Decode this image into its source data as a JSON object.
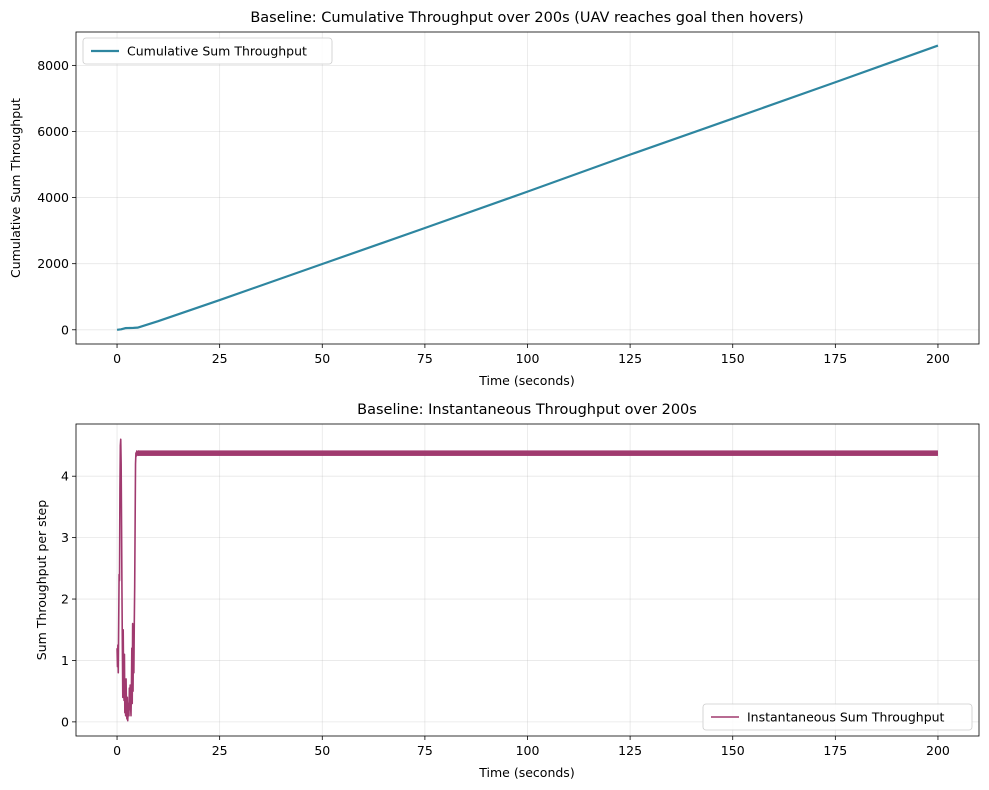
{
  "chart_data": [
    {
      "type": "line",
      "title": "Baseline: Cumulative Throughput over 200s (UAV reaches goal then hovers)",
      "xlabel": "Time (seconds)",
      "ylabel": "Cumulative Sum Throughput",
      "xlim": [
        -10,
        210
      ],
      "ylim": [
        -430,
        9010
      ],
      "xticks": [
        0,
        25,
        50,
        75,
        100,
        125,
        150,
        175,
        200
      ],
      "yticks": [
        0,
        2000,
        4000,
        6000,
        8000
      ],
      "grid": true,
      "legend_position": "top-left",
      "series": [
        {
          "name": "Cumulative Sum Throughput",
          "color": "#2e86a0",
          "x": [
            0,
            1,
            2,
            3,
            4,
            5,
            10,
            25,
            50,
            75,
            100,
            125,
            150,
            175,
            200
          ],
          "y": [
            0,
            15,
            50,
            55,
            57,
            65,
            260,
            900,
            1990,
            3080,
            4180,
            5300,
            6390,
            7490,
            8600
          ]
        }
      ]
    },
    {
      "type": "line",
      "title": "Baseline: Instantaneous Throughput over 200s",
      "xlabel": "Time (seconds)",
      "ylabel": "Sum Throughput per step",
      "xlim": [
        -10,
        210
      ],
      "ylim": [
        -0.23,
        4.85
      ],
      "xticks": [
        0,
        25,
        50,
        75,
        100,
        125,
        150,
        175,
        200
      ],
      "yticks": [
        0,
        1,
        2,
        3,
        4
      ],
      "grid": true,
      "legend_position": "bottom-right",
      "series": [
        {
          "name": "Instantaneous Sum Throughput",
          "color": "#a03a6f",
          "x": [
            0,
            0.1,
            0.2,
            0.3,
            0.4,
            0.5,
            0.6,
            0.7,
            0.8,
            0.9,
            1.0,
            1.1,
            1.2,
            1.3,
            1.4,
            1.5,
            1.6,
            1.7,
            1.8,
            1.9,
            2.0,
            2.1,
            2.2,
            2.3,
            2.4,
            2.5,
            2.6,
            2.7,
            2.8,
            2.9,
            3.0,
            3.1,
            3.2,
            3.3,
            3.4,
            3.5,
            3.6,
            3.7,
            3.8,
            3.9,
            4.0,
            4.1,
            4.2,
            4.3,
            4.4,
            4.5,
            4.6,
            4.7,
            4.8,
            4.9,
            5.0,
            5.1,
            5.2,
            5.3,
            5.4,
            5.5,
            200
          ],
          "y": [
            1.2,
            0.9,
            1.25,
            0.8,
            1.6,
            2.4,
            2.3,
            3.8,
            4.5,
            4.6,
            4.2,
            3.2,
            2.1,
            1.2,
            0.4,
            1.5,
            0.7,
            0.35,
            1.1,
            0.15,
            0.6,
            0.1,
            0.7,
            0.2,
            0.05,
            0.4,
            0.02,
            0.15,
            0.3,
            0.1,
            0.55,
            0.2,
            0.6,
            0.25,
            0.1,
            0.5,
            1.2,
            0.3,
            1.6,
            0.5,
            1.5,
            0.8,
            1.6,
            2.2,
            3.2,
            4.2,
            4.38,
            4.33,
            4.41,
            4.35,
            4.4,
            4.34,
            4.41,
            4.35,
            4.4,
            4.37,
            4.37
          ],
          "band": [
            4.33,
            4.42
          ]
        }
      ]
    }
  ]
}
